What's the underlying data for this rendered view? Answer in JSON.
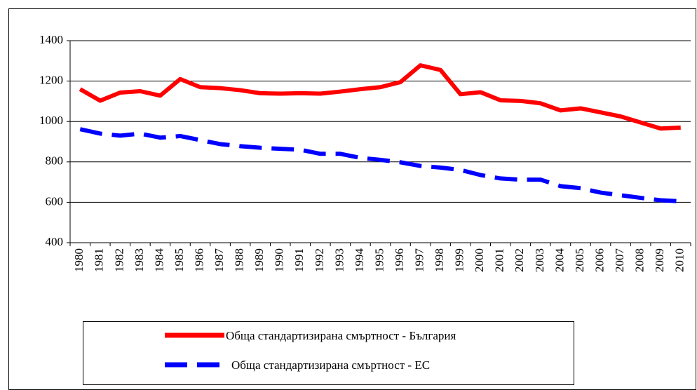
{
  "chart_data": {
    "type": "line",
    "categories": [
      "1980",
      "1981",
      "1982",
      "1983",
      "1984",
      "1985",
      "1986",
      "1987",
      "1988",
      "1989",
      "1990",
      "1991",
      "1992",
      "1993",
      "1994",
      "1995",
      "1996",
      "1997",
      "1998",
      "1999",
      "2000",
      "2001",
      "2002",
      "2003",
      "2004",
      "2005",
      "2006",
      "2007",
      "2008",
      "2009",
      "2010"
    ],
    "series": [
      {
        "name": "Обща стандартизирана смъртност - България",
        "color": "#ff0000",
        "dashed": false,
        "values": [
          1160,
          1103,
          1143,
          1150,
          1128,
          1210,
          1170,
          1165,
          1155,
          1140,
          1138,
          1140,
          1138,
          1148,
          1160,
          1170,
          1195,
          1278,
          1255,
          1135,
          1145,
          1105,
          1102,
          1090,
          1055,
          1065,
          1045,
          1025,
          995,
          965,
          970
        ]
      },
      {
        "name": "Обща стандартизирана смъртност - ЕС",
        "color": "#0000ff",
        "dashed": true,
        "values": [
          962,
          940,
          930,
          940,
          920,
          928,
          908,
          888,
          878,
          870,
          865,
          860,
          840,
          840,
          820,
          810,
          798,
          780,
          772,
          760,
          735,
          718,
          712,
          712,
          680,
          670,
          648,
          635,
          622,
          610,
          605
        ]
      }
    ],
    "ylim": [
      400,
      1400
    ],
    "yticks": [
      400,
      600,
      800,
      1000,
      1200,
      1400
    ],
    "grid": true,
    "legend": "bottom"
  }
}
